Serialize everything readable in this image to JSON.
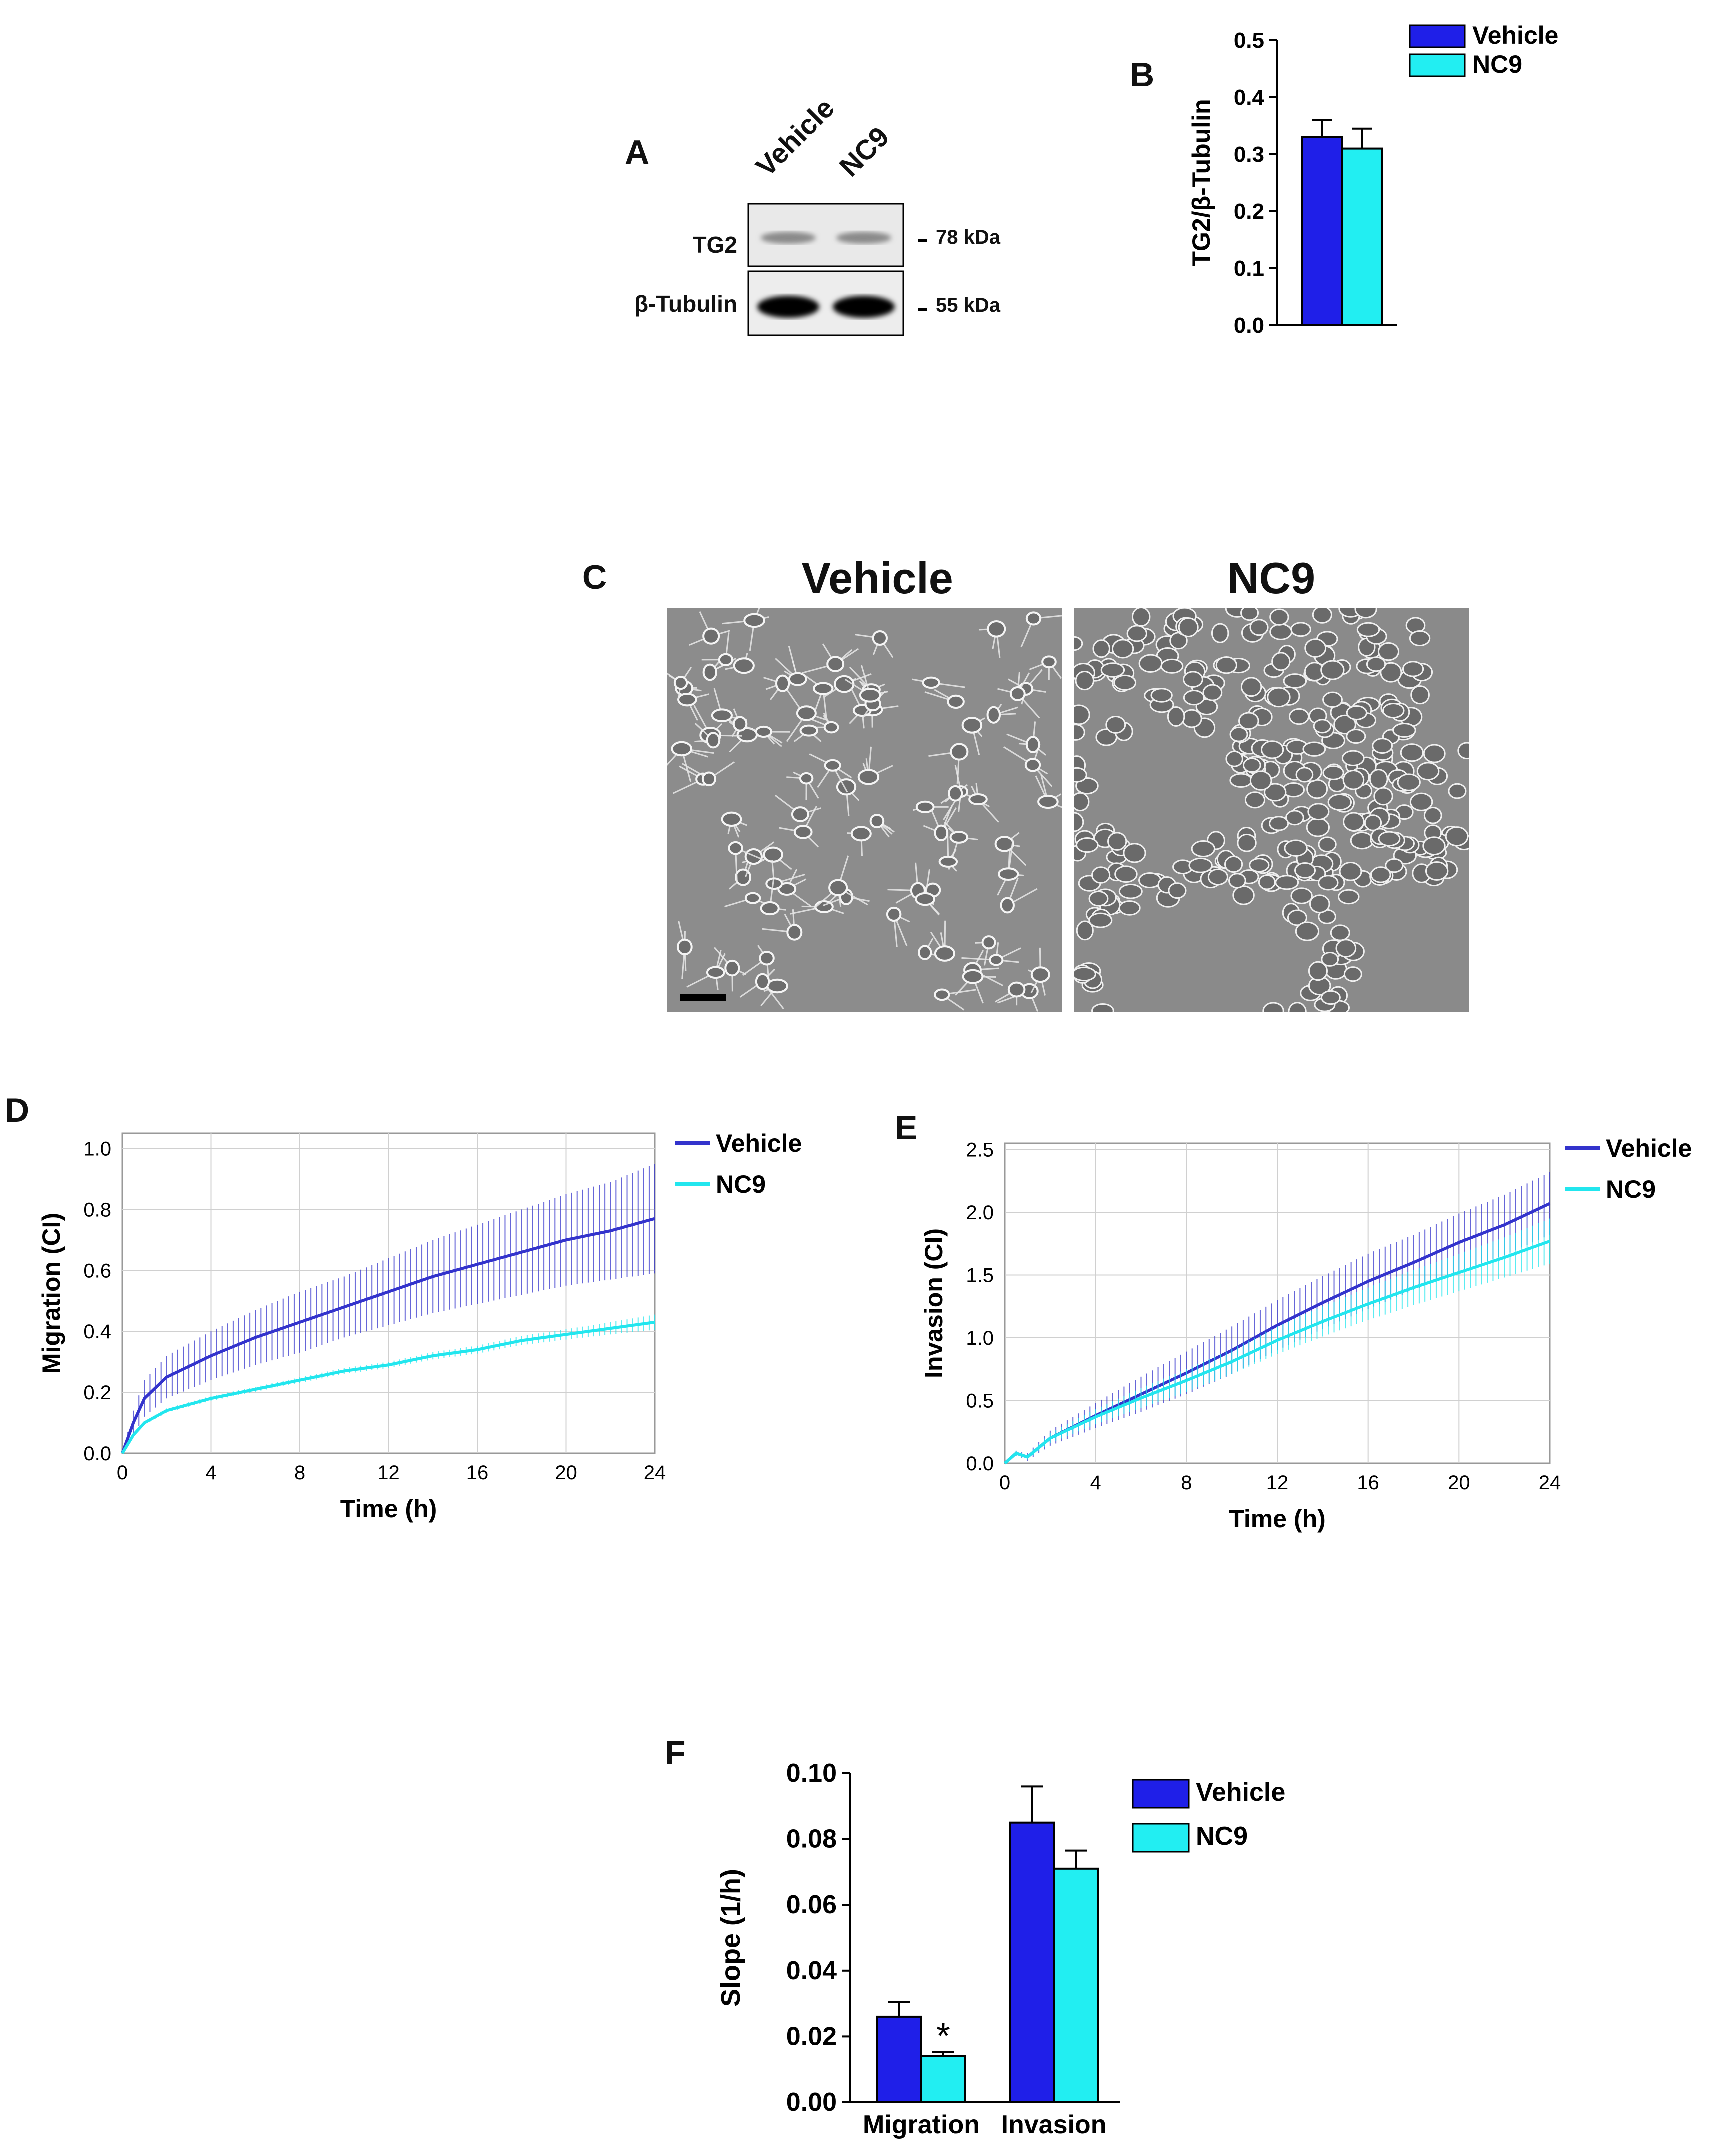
{
  "panels": {
    "a": "A",
    "b": "B",
    "c": "C",
    "d": "D",
    "e": "E",
    "f": "F"
  },
  "colors": {
    "vehicle": "#1f1fe8",
    "nc9": "#22eef2",
    "vehicle_line": "#3333cc",
    "nc9_line": "#22e6ee"
  },
  "western_blot": {
    "lanes": [
      "Vehicle",
      "NC9"
    ],
    "rows": [
      {
        "label": "TG2",
        "size": "78 kDa"
      },
      {
        "label": "β-Tubulin",
        "size": "55 kDa"
      }
    ]
  },
  "microscopy": {
    "left_title": "Vehicle",
    "right_title": "NC9"
  },
  "chart_data": [
    {
      "id": "B",
      "type": "bar",
      "categories": [
        "Vehicle",
        "NC9"
      ],
      "values": [
        0.33,
        0.31
      ],
      "errors": [
        0.03,
        0.035
      ],
      "ylabel": "TG2/β-Tubulin",
      "ylim": [
        0,
        0.5
      ],
      "yticks": [
        "0.0",
        "0.1",
        "0.2",
        "0.3",
        "0.4",
        "0.5"
      ],
      "legend": [
        "Vehicle",
        "NC9"
      ]
    },
    {
      "id": "D",
      "type": "line",
      "xlabel": "Time (h)",
      "ylabel": "Migration (CI)",
      "xlim": [
        0,
        24
      ],
      "ylim": [
        0,
        1.05
      ],
      "xticks": [
        "0",
        "4",
        "8",
        "12",
        "16",
        "20",
        "24"
      ],
      "yticks": [
        "0.0",
        "0.2",
        "0.4",
        "0.6",
        "0.8",
        "1.0"
      ],
      "series": [
        {
          "name": "Vehicle",
          "x": [
            0,
            0.5,
            1,
            2,
            4,
            6,
            8,
            10,
            12,
            14,
            16,
            18,
            20,
            22,
            24
          ],
          "y": [
            0,
            0.1,
            0.18,
            0.25,
            0.32,
            0.38,
            0.43,
            0.48,
            0.53,
            0.58,
            0.62,
            0.66,
            0.7,
            0.73,
            0.77
          ],
          "err": [
            0,
            0.04,
            0.06,
            0.07,
            0.08,
            0.09,
            0.1,
            0.1,
            0.11,
            0.12,
            0.13,
            0.14,
            0.15,
            0.16,
            0.18
          ]
        },
        {
          "name": "NC9",
          "x": [
            0,
            0.5,
            1,
            2,
            4,
            6,
            8,
            10,
            12,
            14,
            16,
            18,
            20,
            22,
            24
          ],
          "y": [
            0,
            0.06,
            0.1,
            0.14,
            0.18,
            0.21,
            0.24,
            0.27,
            0.29,
            0.32,
            0.34,
            0.37,
            0.39,
            0.41,
            0.43
          ],
          "err": [
            0,
            0.005,
            0.006,
            0.007,
            0.008,
            0.008,
            0.009,
            0.01,
            0.01,
            0.012,
            0.013,
            0.015,
            0.017,
            0.02,
            0.025
          ]
        }
      ],
      "legend": [
        "Vehicle",
        "NC9"
      ]
    },
    {
      "id": "E",
      "type": "line",
      "xlabel": "Time (h)",
      "ylabel": "Invasion (CI)",
      "xlim": [
        0,
        24
      ],
      "ylim": [
        0,
        2.55
      ],
      "xticks": [
        "0",
        "4",
        "8",
        "12",
        "16",
        "20",
        "24"
      ],
      "yticks": [
        "0.0",
        "0.5",
        "1.0",
        "1.5",
        "2.0",
        "2.5"
      ],
      "series": [
        {
          "name": "Vehicle",
          "x": [
            0,
            0.5,
            1,
            2,
            4,
            6,
            8,
            10,
            12,
            14,
            16,
            18,
            20,
            22,
            24
          ],
          "y": [
            0,
            0.08,
            0.05,
            0.2,
            0.38,
            0.55,
            0.72,
            0.9,
            1.1,
            1.28,
            1.45,
            1.6,
            1.76,
            1.9,
            2.07
          ],
          "err": [
            0,
            0.02,
            0.03,
            0.06,
            0.1,
            0.14,
            0.17,
            0.19,
            0.2,
            0.21,
            0.22,
            0.22,
            0.23,
            0.24,
            0.25
          ]
        },
        {
          "name": "NC9",
          "x": [
            0,
            0.5,
            1,
            2,
            4,
            6,
            8,
            10,
            12,
            14,
            16,
            18,
            20,
            22,
            24
          ],
          "y": [
            0,
            0.08,
            0.05,
            0.2,
            0.37,
            0.52,
            0.66,
            0.81,
            0.98,
            1.13,
            1.27,
            1.4,
            1.52,
            1.64,
            1.77
          ],
          "err": [
            0,
            0.02,
            0.02,
            0.04,
            0.06,
            0.08,
            0.09,
            0.1,
            0.11,
            0.12,
            0.13,
            0.14,
            0.15,
            0.16,
            0.18
          ]
        }
      ],
      "legend": [
        "Vehicle",
        "NC9"
      ]
    },
    {
      "id": "F",
      "type": "bar",
      "categories": [
        "Migration",
        "Invasion"
      ],
      "series": [
        {
          "name": "Vehicle",
          "values": [
            0.026,
            0.085
          ],
          "errors": [
            0.0045,
            0.011
          ]
        },
        {
          "name": "NC9",
          "values": [
            0.014,
            0.071
          ],
          "errors": [
            0.0012,
            0.0055
          ]
        }
      ],
      "annotation": "*",
      "ylabel": "Slope (1/h)",
      "ylim": [
        0,
        0.1
      ],
      "yticks": [
        "0.00",
        "0.02",
        "0.04",
        "0.06",
        "0.08",
        "0.10"
      ],
      "legend": [
        "Vehicle",
        "NC9"
      ]
    }
  ]
}
